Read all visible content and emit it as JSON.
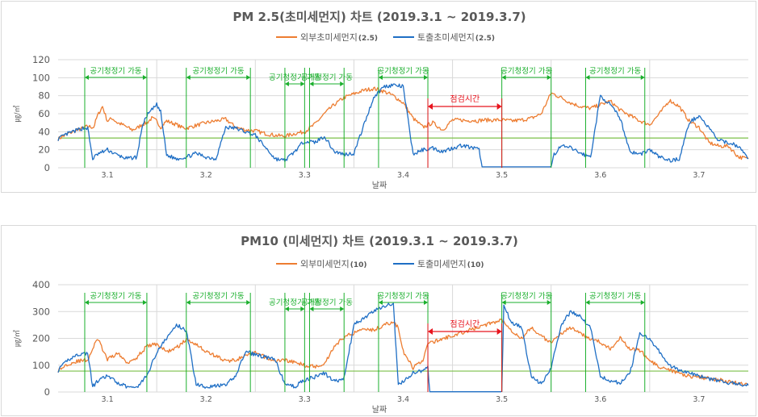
{
  "colors": {
    "outdoor": "#ED7D31",
    "outlet": "#1F6FC5",
    "purifier": "#1AAF2C",
    "maintenance": "#E8141E",
    "baseline": "#7CC04A",
    "grid": "#d9d9d9",
    "text": "#595959"
  },
  "chart_data": [
    {
      "type": "line",
      "title": "PM 2.5(초미세먼지) 차트 (2019.3.1 ~ 2019.3.7)",
      "xlabel": "날짜",
      "ylabel": "㎍/㎥",
      "ylim": [
        0,
        120
      ],
      "yticks": [
        0,
        20,
        40,
        60,
        80,
        100,
        120
      ],
      "xlim": [
        3.0,
        3.7
      ],
      "xtick_labels": [
        "3.1",
        "3.2",
        "3.3",
        "3.4",
        "3.5",
        "3.6",
        "3.7"
      ],
      "legend_position": "top-center",
      "baseline_value": 33,
      "series": [
        {
          "name": "외부초미세먼지",
          "suffix": "(2.5)",
          "color": "#ED7D31",
          "x": [
            3.0,
            3.01,
            3.02,
            3.025,
            3.03,
            3.036,
            3.04,
            3.045,
            3.05,
            3.055,
            3.06,
            3.065,
            3.07,
            3.075,
            3.08,
            3.085,
            3.09,
            3.095,
            3.1,
            3.104,
            3.11,
            3.12,
            3.125,
            3.13,
            3.14,
            3.15,
            3.16,
            3.17,
            3.18,
            3.19,
            3.2,
            3.21,
            3.22,
            3.23,
            3.24,
            3.25,
            3.26,
            3.27,
            3.28,
            3.29,
            3.3,
            3.31,
            3.32,
            3.33,
            3.34,
            3.35,
            3.36,
            3.37,
            3.38,
            3.39,
            3.4,
            3.405,
            3.41,
            3.415,
            3.42,
            3.425,
            3.43,
            3.44,
            3.45,
            3.46,
            3.47,
            3.48,
            3.49,
            3.5,
            3.51,
            3.52,
            3.53,
            3.54,
            3.55,
            3.56,
            3.57,
            3.58,
            3.59,
            3.6,
            3.61,
            3.62,
            3.63,
            3.64,
            3.65,
            3.66,
            3.67,
            3.68,
            3.69,
            3.7
          ],
          "values": [
            32,
            38,
            42,
            44,
            46,
            45,
            58,
            68,
            52,
            55,
            50,
            48,
            45,
            42,
            44,
            48,
            50,
            55,
            52,
            45,
            52,
            48,
            45,
            44,
            47,
            50,
            52,
            54,
            45,
            42,
            41,
            38,
            36,
            35,
            38,
            40,
            48,
            60,
            70,
            78,
            82,
            86,
            88,
            85,
            80,
            72,
            55,
            45,
            50,
            42,
            53,
            53,
            53,
            52,
            53,
            52,
            53,
            53,
            53,
            52,
            53,
            55,
            60,
            83,
            78,
            72,
            68,
            66,
            70,
            74,
            64,
            58,
            52,
            48,
            60,
            75,
            68,
            52,
            45,
            28,
            24,
            24,
            12,
            10
          ],
          "gaps_from_x": [
            3.427,
            3.5
          ]
        },
        {
          "name": "토출초미세먼지",
          "suffix": "(2.5)",
          "color": "#1F6FC5",
          "x": [
            3.0,
            3.01,
            3.02,
            3.025,
            3.03,
            3.035,
            3.04,
            3.05,
            3.06,
            3.07,
            3.08,
            3.085,
            3.09,
            3.1,
            3.104,
            3.11,
            3.12,
            3.13,
            3.14,
            3.15,
            3.16,
            3.17,
            3.18,
            3.19,
            3.2,
            3.22,
            3.23,
            3.24,
            3.25,
            3.26,
            3.27,
            3.28,
            3.29,
            3.3,
            3.32,
            3.33,
            3.34,
            3.35,
            3.36,
            3.37,
            3.38,
            3.39,
            3.4,
            3.41,
            3.42,
            3.427,
            3.43,
            3.5,
            3.503,
            3.51,
            3.52,
            3.53,
            3.54,
            3.55,
            3.56,
            3.57,
            3.58,
            3.59,
            3.6,
            3.61,
            3.62,
            3.63,
            3.64,
            3.65,
            3.66,
            3.67,
            3.68,
            3.69,
            3.7
          ],
          "values": [
            32,
            38,
            42,
            44,
            44,
            10,
            15,
            20,
            14,
            10,
            12,
            45,
            58,
            70,
            62,
            14,
            10,
            12,
            16,
            12,
            10,
            45,
            44,
            40,
            36,
            10,
            8,
            18,
            30,
            28,
            35,
            18,
            15,
            16,
            78,
            90,
            92,
            90,
            15,
            20,
            22,
            18,
            22,
            25,
            22,
            20,
            1,
            1,
            15,
            24,
            22,
            16,
            12,
            80,
            70,
            55,
            18,
            15,
            20,
            12,
            8,
            10,
            50,
            58,
            44,
            30,
            28,
            24,
            10
          ],
          "notes": ""
        }
      ],
      "purifier_label": "공기청정기 가동",
      "purifier_periods": [
        [
          3.027,
          3.09
        ],
        [
          3.13,
          3.195
        ],
        [
          3.23,
          3.25
        ],
        [
          3.255,
          3.29
        ],
        [
          3.325,
          3.375
        ],
        [
          3.45,
          3.5
        ],
        [
          3.535,
          3.595
        ]
      ],
      "maintenance_label": "점검시간",
      "maintenance_period": [
        3.375,
        3.45
      ]
    },
    {
      "type": "line",
      "title": "PM10 (미세먼지) 차트 (2019.3.1 ~ 2019.3.7)",
      "xlabel": "날짜",
      "ylabel": "㎍/㎥",
      "ylim": [
        0,
        400
      ],
      "yticks": [
        0,
        100,
        200,
        300,
        400
      ],
      "xlim": [
        3.0,
        3.7
      ],
      "xtick_labels": [
        "3.1",
        "3.2",
        "3.3",
        "3.4",
        "3.5",
        "3.6",
        "3.7"
      ],
      "legend_position": "top-center",
      "baseline_value": 78,
      "series": [
        {
          "name": "외부미세먼지",
          "suffix": "(10)",
          "color": "#ED7D31",
          "x": [
            3.0,
            3.01,
            3.02,
            3.03,
            3.04,
            3.045,
            3.05,
            3.06,
            3.07,
            3.08,
            3.09,
            3.1,
            3.11,
            3.12,
            3.13,
            3.14,
            3.15,
            3.16,
            3.17,
            3.18,
            3.19,
            3.2,
            3.21,
            3.22,
            3.23,
            3.24,
            3.25,
            3.26,
            3.27,
            3.28,
            3.29,
            3.3,
            3.31,
            3.32,
            3.33,
            3.34,
            3.345,
            3.35,
            3.36,
            3.37,
            3.375,
            3.45,
            3.46,
            3.47,
            3.48,
            3.49,
            3.5,
            3.51,
            3.52,
            3.53,
            3.54,
            3.55,
            3.56,
            3.57,
            3.58,
            3.59,
            3.6,
            3.61,
            3.62,
            3.63,
            3.64,
            3.65,
            3.66,
            3.67,
            3.68,
            3.69,
            3.7
          ],
          "values": [
            80,
            105,
            115,
            120,
            200,
            160,
            120,
            145,
            110,
            130,
            170,
            180,
            150,
            165,
            195,
            180,
            150,
            135,
            115,
            120,
            135,
            145,
            130,
            115,
            120,
            110,
            100,
            95,
            105,
            170,
            205,
            220,
            240,
            230,
            250,
            260,
            240,
            150,
            90,
            120,
            180,
            270,
            230,
            200,
            240,
            210,
            180,
            220,
            240,
            215,
            200,
            185,
            160,
            205,
            160,
            155,
            120,
            90,
            80,
            70,
            60,
            55,
            50,
            45,
            38,
            32,
            25
          ]
        },
        {
          "name": "토출미세먼지",
          "suffix": "(10)",
          "color": "#1F6FC5",
          "x": [
            3.0,
            3.01,
            3.02,
            3.03,
            3.035,
            3.04,
            3.05,
            3.06,
            3.07,
            3.08,
            3.09,
            3.1,
            3.11,
            3.12,
            3.13,
            3.14,
            3.15,
            3.17,
            3.18,
            3.19,
            3.2,
            3.22,
            3.23,
            3.24,
            3.25,
            3.26,
            3.27,
            3.28,
            3.29,
            3.3,
            3.32,
            3.33,
            3.34,
            3.345,
            3.36,
            3.37,
            3.375,
            3.377,
            3.45,
            3.452,
            3.46,
            3.47,
            3.48,
            3.49,
            3.5,
            3.51,
            3.52,
            3.53,
            3.54,
            3.55,
            3.56,
            3.57,
            3.58,
            3.59,
            3.6,
            3.61,
            3.62,
            3.63,
            3.64,
            3.65,
            3.66,
            3.67,
            3.68,
            3.69,
            3.7
          ],
          "values": [
            80,
            120,
            140,
            145,
            20,
            40,
            60,
            35,
            20,
            18,
            60,
            150,
            200,
            250,
            230,
            30,
            20,
            25,
            60,
            150,
            140,
            120,
            30,
            20,
            45,
            55,
            70,
            40,
            50,
            250,
            300,
            320,
            330,
            25,
            70,
            80,
            90,
            1,
            1,
            320,
            260,
            240,
            60,
            30,
            90,
            250,
            300,
            280,
            240,
            60,
            40,
            35,
            70,
            220,
            200,
            150,
            100,
            80,
            70,
            60,
            50,
            40,
            35,
            30,
            25
          ]
        }
      ],
      "purifier_label": "공기청정기 가동",
      "purifier_periods": [
        [
          3.027,
          3.09
        ],
        [
          3.13,
          3.195
        ],
        [
          3.23,
          3.25
        ],
        [
          3.255,
          3.29
        ],
        [
          3.325,
          3.375
        ],
        [
          3.45,
          3.5
        ],
        [
          3.535,
          3.595
        ]
      ],
      "maintenance_label": "점검시간",
      "maintenance_period": [
        3.375,
        3.45
      ]
    }
  ]
}
